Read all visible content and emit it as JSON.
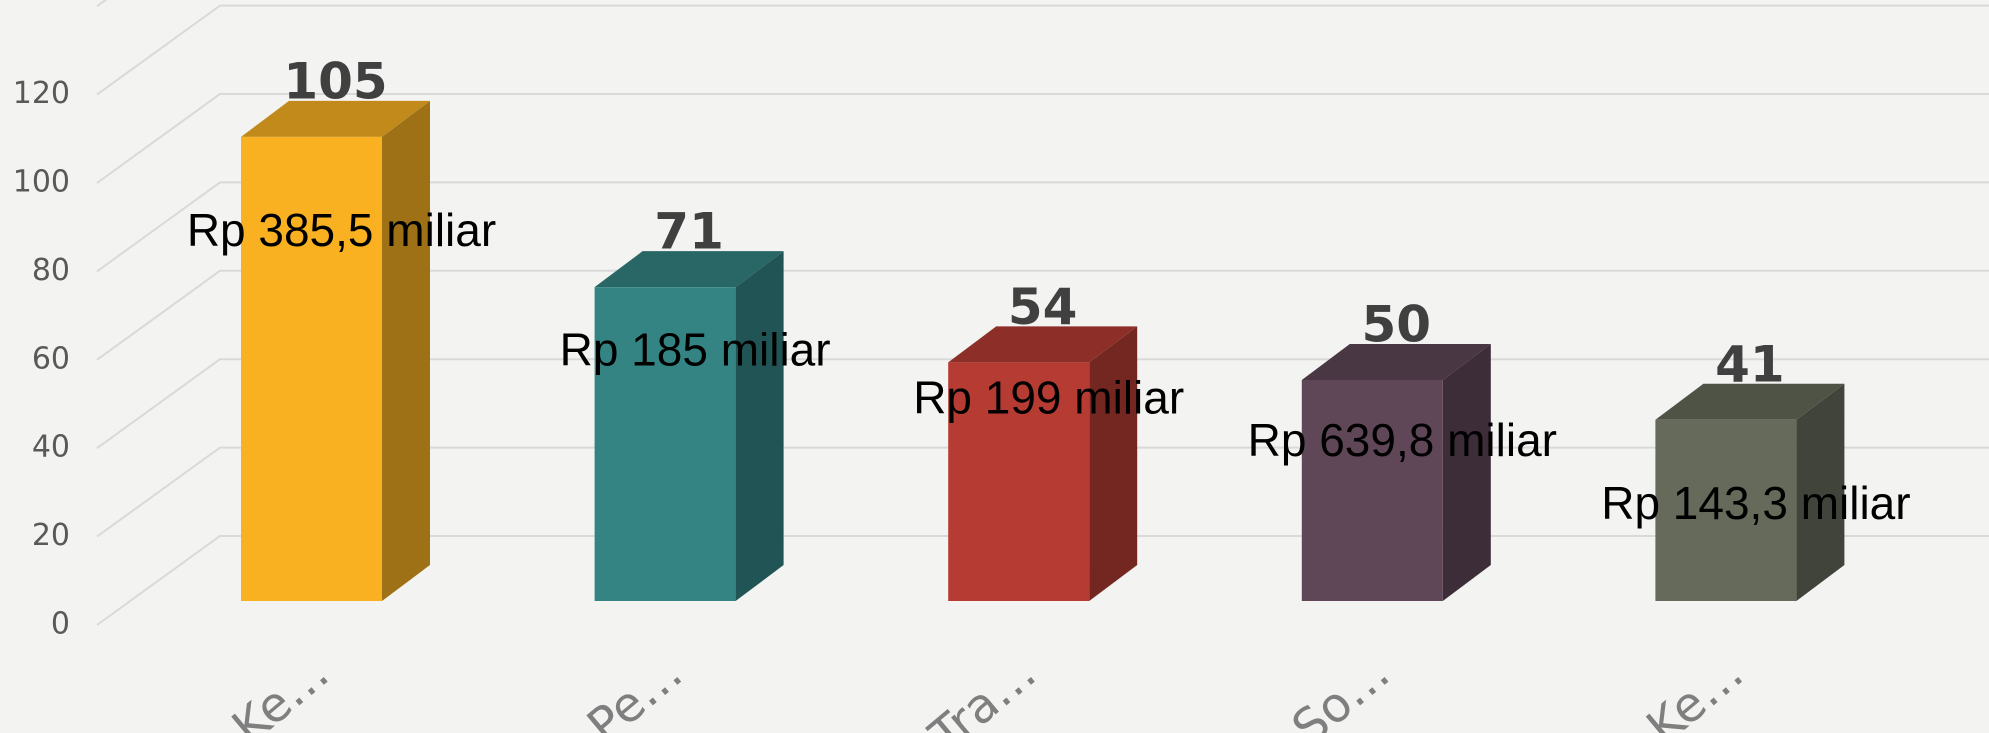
{
  "chart_data": {
    "type": "bar3d",
    "categories": [
      "Ke…",
      "Pe…",
      "Tra…",
      "So…",
      "Ke…"
    ],
    "values": [
      105,
      71,
      54,
      50,
      41
    ],
    "colors": [
      "#f9b122",
      "#348484",
      "#b53b33",
      "#5f4757",
      "#656a5a"
    ],
    "annotations": [
      "Rp 385,5 miliar",
      "Rp 185 miliar",
      "Rp 199 miliar",
      "Rp 639,8 miliar",
      "Rp 143,3 miliar"
    ],
    "ylim": [
      0,
      140
    ],
    "yticks": [
      0,
      20,
      40,
      60,
      80,
      100,
      120
    ],
    "grid": true
  }
}
